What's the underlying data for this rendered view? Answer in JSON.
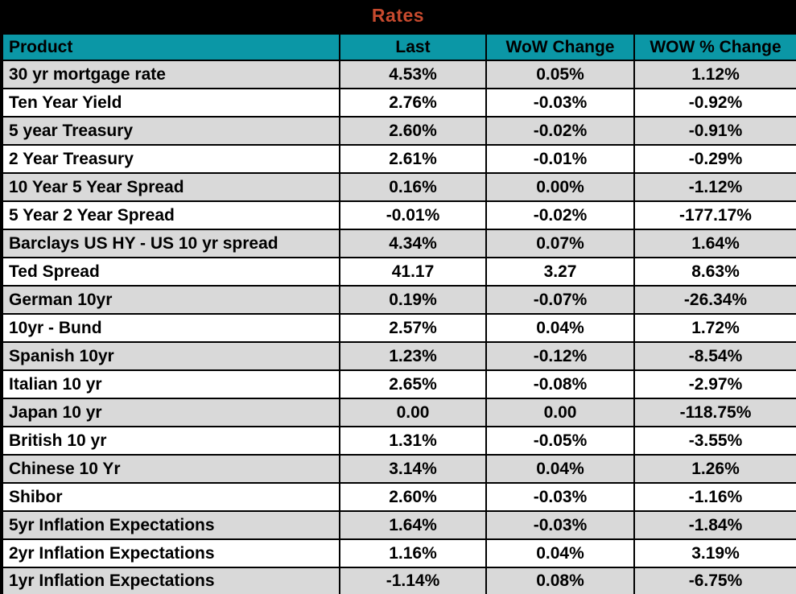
{
  "title": "Rates",
  "colors": {
    "title_text": "#c74a2e",
    "title_band_bg": "#000000",
    "header_bg": "#0b97a6",
    "header_text": "#000000",
    "row_alt_bg": "#d9d9d9",
    "row_bg": "#ffffff",
    "border": "#000000",
    "cell_text": "#000000"
  },
  "chart_data": {
    "type": "table",
    "title": "Rates",
    "columns": [
      "Product",
      "Last",
      "WoW Change",
      "WOW % Change"
    ],
    "rows": [
      [
        "30 yr mortgage rate",
        "4.53%",
        "0.05%",
        "1.12%"
      ],
      [
        "Ten Year Yield",
        "2.76%",
        "-0.03%",
        "-0.92%"
      ],
      [
        "5 year Treasury",
        "2.60%",
        "-0.02%",
        "-0.91%"
      ],
      [
        "2 Year Treasury",
        "2.61%",
        "-0.01%",
        "-0.29%"
      ],
      [
        "10 Year 5 Year Spread",
        "0.16%",
        "0.00%",
        "-1.12%"
      ],
      [
        "5 Year 2 Year Spread",
        "-0.01%",
        "-0.02%",
        "-177.17%"
      ],
      [
        "Barclays US HY - US 10 yr spread",
        "4.34%",
        "0.07%",
        "1.64%"
      ],
      [
        "Ted Spread",
        "41.17",
        "3.27",
        "8.63%"
      ],
      [
        "German 10yr",
        "0.19%",
        "-0.07%",
        "-26.34%"
      ],
      [
        "10yr - Bund",
        "2.57%",
        "0.04%",
        "1.72%"
      ],
      [
        "Spanish 10yr",
        "1.23%",
        "-0.12%",
        "-8.54%"
      ],
      [
        "Italian 10 yr",
        "2.65%",
        "-0.08%",
        "-2.97%"
      ],
      [
        "Japan 10 yr",
        "0.00",
        "0.00",
        "-118.75%"
      ],
      [
        "British 10 yr",
        "1.31%",
        "-0.05%",
        "-3.55%"
      ],
      [
        "Chinese 10 Yr",
        "3.14%",
        "0.04%",
        "1.26%"
      ],
      [
        "Shibor",
        "2.60%",
        "-0.03%",
        "-1.16%"
      ],
      [
        "5yr Inflation Expectations",
        "1.64%",
        "-0.03%",
        "-1.84%"
      ],
      [
        "2yr Inflation Expectations",
        "1.16%",
        "0.04%",
        "3.19%"
      ],
      [
        "1yr Inflation Expectations",
        "-1.14%",
        "0.08%",
        "-6.75%"
      ]
    ],
    "layout": {
      "striped": true,
      "first_data_row_shaded": true,
      "value_alignment": "center",
      "product_alignment": "left"
    }
  }
}
